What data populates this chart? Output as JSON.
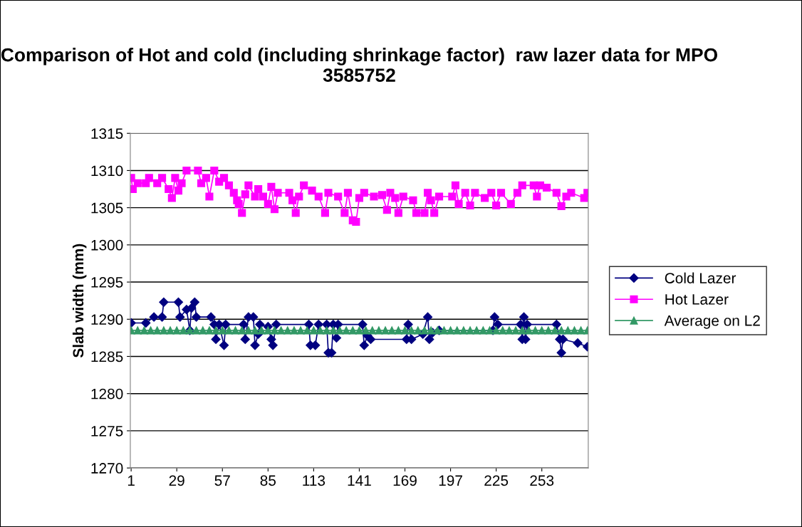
{
  "chart_data": {
    "type": "line",
    "title": "Comparison of Hot and cold (including shrinkage factor)  raw lazer data for MPO 3585752",
    "ylabel": "Slab width (mm)",
    "xlim": [
      0.5,
      281.5
    ],
    "xticks": [
      1,
      29,
      57,
      85,
      113,
      141,
      169,
      197,
      225,
      253
    ],
    "ylim": [
      1270,
      1315
    ],
    "yticks": [
      1270,
      1275,
      1280,
      1285,
      1290,
      1295,
      1300,
      1305,
      1310,
      1315
    ],
    "grid": "y",
    "legend": "right",
    "line_style": "solid",
    "series": [
      {
        "name": "Cold Lazer",
        "color": "#000080",
        "marker": "diamond",
        "x": [
          1,
          10,
          15,
          20,
          21,
          30,
          31,
          35,
          37,
          38,
          40,
          41,
          50,
          52,
          53,
          55,
          58,
          59,
          70,
          71,
          73,
          76,
          77,
          79,
          80,
          85,
          87,
          88,
          90,
          110,
          111,
          114,
          116,
          121,
          122,
          124,
          125,
          127,
          128,
          143,
          144,
          146,
          148,
          170,
          171,
          173,
          180,
          183,
          184,
          186,
          190,
          223,
          224,
          226,
          240,
          241,
          242,
          243,
          244,
          262,
          264,
          265,
          266,
          275,
          281
        ],
        "values": [
          1289.5,
          1289.5,
          1290.3,
          1290.3,
          1292.3,
          1292.3,
          1290.3,
          1291.3,
          1288.5,
          1291.5,
          1292.3,
          1290.3,
          1290.3,
          1289.3,
          1287.3,
          1289.3,
          1286.5,
          1289.3,
          1289.3,
          1287.3,
          1290.3,
          1290.3,
          1286.5,
          1288,
          1289.3,
          1289,
          1287.3,
          1286.5,
          1289.3,
          1289.3,
          1286.5,
          1286.5,
          1289.3,
          1289.3,
          1285.5,
          1285.5,
          1289.3,
          1287.5,
          1289.3,
          1289.3,
          1286.5,
          1287.8,
          1287.3,
          1287.3,
          1289.3,
          1287.3,
          1288,
          1290.3,
          1287.3,
          1288.2,
          1288.5,
          1288.5,
          1290.3,
          1289.3,
          1289.3,
          1287.3,
          1290.3,
          1287.3,
          1289.3,
          1289.3,
          1287.3,
          1285.5,
          1287.3,
          1286.8,
          1286.3
        ]
      },
      {
        "name": "Hot Lazer",
        "color": "#ff00ff",
        "marker": "square",
        "x": [
          1,
          2,
          5,
          10,
          12,
          17,
          20,
          24,
          26,
          28,
          30,
          32,
          35,
          42,
          44,
          47,
          49,
          52,
          55,
          58,
          61,
          64,
          66,
          67,
          69,
          71,
          73,
          77,
          79,
          82,
          85,
          87,
          89,
          91,
          98,
          100,
          102,
          104,
          107,
          112,
          116,
          120,
          122,
          128,
          132,
          134,
          137,
          139,
          141,
          144,
          150,
          155,
          158,
          160,
          163,
          165,
          168,
          174,
          176,
          181,
          183,
          185,
          187,
          190,
          198,
          200,
          202,
          206,
          209,
          212,
          218,
          222,
          225,
          228,
          234,
          238,
          241,
          248,
          250,
          252,
          256,
          262,
          265,
          268,
          271,
          279,
          281
        ],
        "values": [
          1309,
          1307.5,
          1308.3,
          1308.3,
          1309,
          1308.3,
          1309,
          1307.5,
          1306.3,
          1309,
          1307.3,
          1308.3,
          1310,
          1310,
          1308.3,
          1309,
          1306.5,
          1310,
          1308.5,
          1309,
          1308,
          1307,
          1306,
          1305.5,
          1304.3,
          1306.8,
          1308,
          1306.5,
          1307.5,
          1306.5,
          1305.5,
          1307.8,
          1304.8,
          1307,
          1307,
          1306,
          1304.3,
          1306.5,
          1308,
          1307.3,
          1306.5,
          1304.3,
          1307,
          1306.5,
          1304.3,
          1307,
          1303.3,
          1303.1,
          1306.3,
          1307,
          1306.5,
          1306.7,
          1304.7,
          1307,
          1306.3,
          1304.3,
          1306.5,
          1306,
          1304.3,
          1304.3,
          1307,
          1306,
          1304.3,
          1306.5,
          1306.5,
          1308,
          1305.5,
          1307,
          1305.3,
          1307,
          1306.3,
          1307,
          1305.3,
          1307,
          1305.5,
          1307,
          1308,
          1308,
          1306.5,
          1308,
          1307.7,
          1307,
          1305.2,
          1306.5,
          1307,
          1306.3,
          1307
        ]
      },
      {
        "name": "Average on L2",
        "color": "#339966",
        "marker": "triangle",
        "x": [
          1,
          5,
          9,
          13,
          17,
          21,
          25,
          29,
          33,
          37,
          41,
          45,
          49,
          53,
          57,
          61,
          65,
          69,
          73,
          77,
          81,
          85,
          89,
          93,
          97,
          101,
          105,
          109,
          113,
          117,
          121,
          125,
          129,
          133,
          137,
          141,
          145,
          149,
          153,
          157,
          161,
          165,
          169,
          173,
          177,
          181,
          185,
          189,
          193,
          197,
          201,
          205,
          209,
          213,
          217,
          221,
          225,
          229,
          233,
          237,
          241,
          245,
          249,
          253,
          257,
          261,
          265,
          269,
          273,
          277,
          281
        ],
        "values": [
          1288.5,
          1288.5,
          1288.5,
          1288.5,
          1288.5,
          1288.5,
          1288.5,
          1288.5,
          1288.5,
          1288.5,
          1288.5,
          1288.5,
          1288.5,
          1288.5,
          1288.5,
          1288.5,
          1288.5,
          1288.5,
          1288.5,
          1288.5,
          1288.5,
          1288.5,
          1288.5,
          1288.5,
          1288.5,
          1288.5,
          1288.5,
          1288.5,
          1288.5,
          1288.5,
          1288.5,
          1288.5,
          1288.5,
          1288.5,
          1288.5,
          1288.5,
          1288.5,
          1288.5,
          1288.5,
          1288.5,
          1288.5,
          1288.5,
          1288.5,
          1288.5,
          1288.5,
          1288.5,
          1288.5,
          1288.5,
          1288.5,
          1288.5,
          1288.5,
          1288.5,
          1288.5,
          1288.5,
          1288.5,
          1288.5,
          1288.5,
          1288.5,
          1288.5,
          1288.5,
          1288.5,
          1288.5,
          1288.5,
          1288.5,
          1288.5,
          1288.5,
          1288.5,
          1288.5,
          1288.5,
          1288.5,
          1288.5
        ]
      }
    ]
  }
}
